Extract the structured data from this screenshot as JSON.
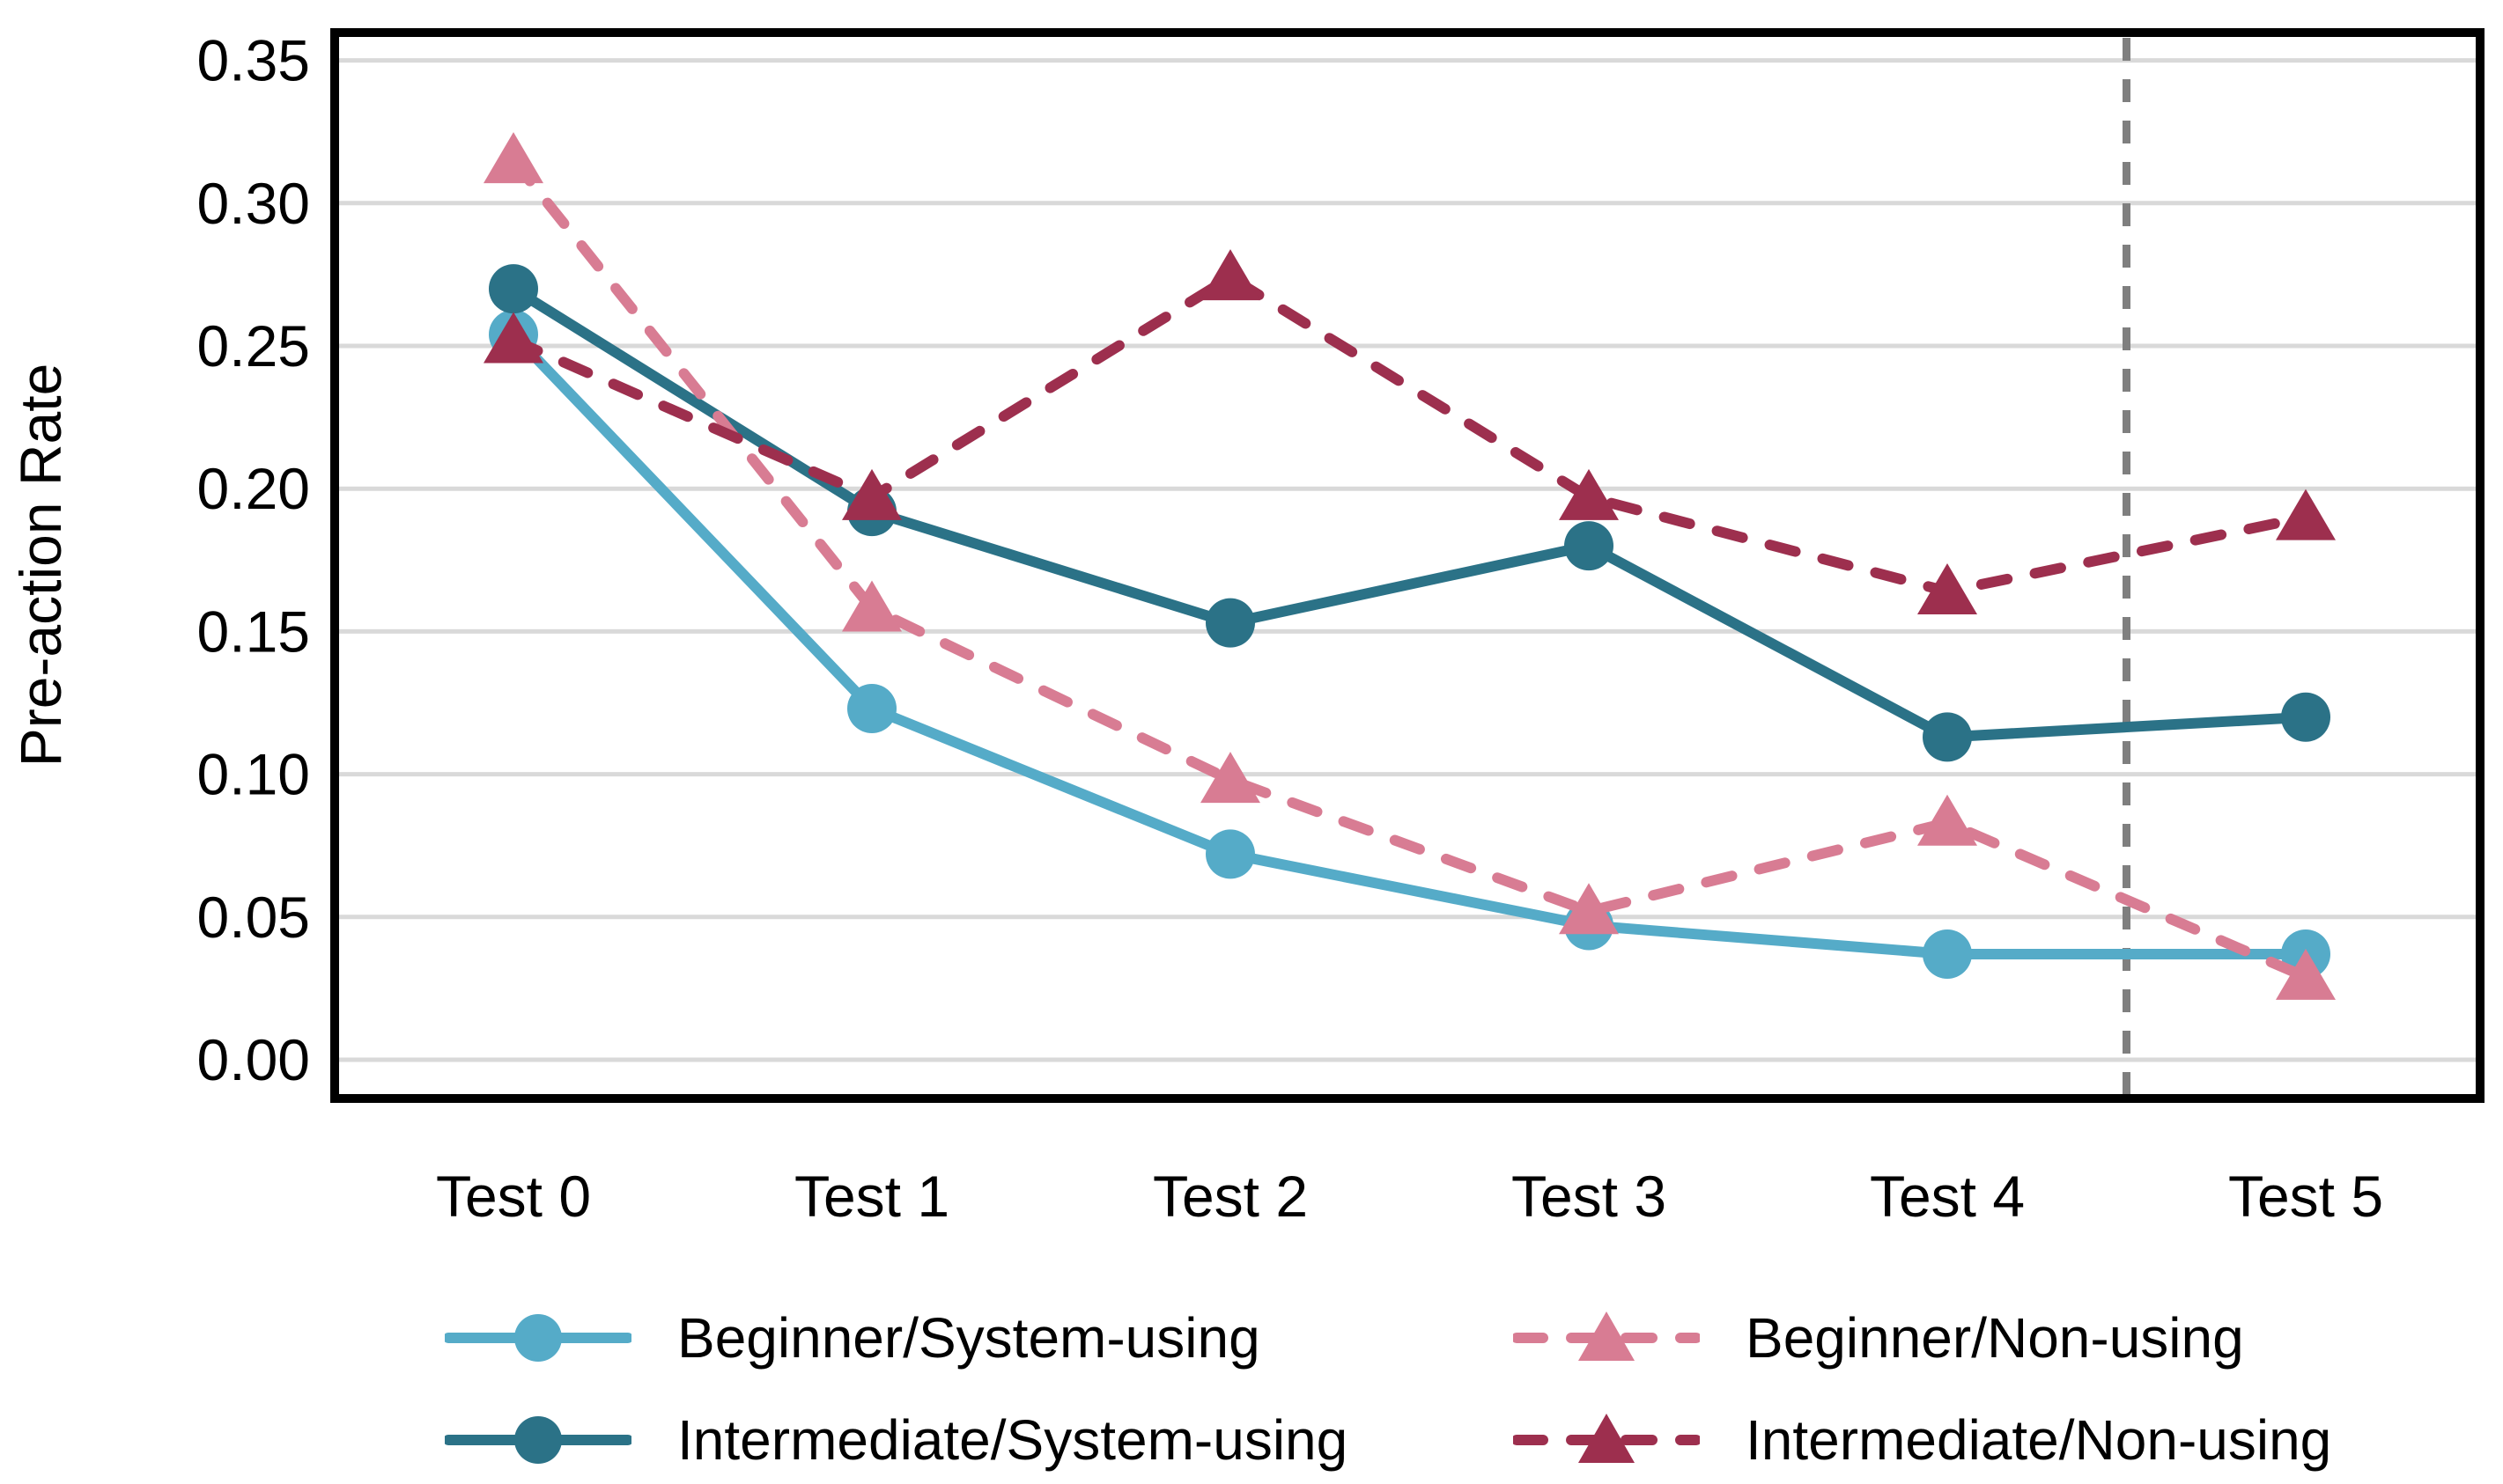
{
  "chart_data": {
    "type": "line",
    "title": "",
    "xlabel": "",
    "ylabel": "Pre-action Rate",
    "categories": [
      "Test 0",
      "Test 1",
      "Test 2",
      "Test 3",
      "Test 4",
      "Test 5"
    ],
    "series": [
      {
        "name": "Beginner/System-using",
        "color": "#55abc8",
        "line_style": "solid",
        "marker": "circle",
        "values": [
          0.254,
          0.123,
          0.072,
          0.047,
          0.037,
          0.037
        ]
      },
      {
        "name": "Intermediate/System-using",
        "color": "#2b7287",
        "line_style": "solid",
        "marker": "circle",
        "values": [
          0.27,
          0.192,
          0.153,
          0.18,
          0.113,
          0.12
        ]
      },
      {
        "name": "Beginner/Non-using",
        "color": "#d87c93",
        "line_style": "dashed",
        "marker": "triangle",
        "values": [
          0.315,
          0.158,
          0.098,
          0.052,
          0.083,
          0.029
        ]
      },
      {
        "name": "Intermediate/Non-using",
        "color": "#9d2f4e",
        "line_style": "dashed",
        "marker": "triangle",
        "values": [
          0.252,
          0.197,
          0.274,
          0.197,
          0.164,
          0.19
        ]
      }
    ],
    "ylim": [
      0.0,
      0.35
    ],
    "y_ticks": [
      {
        "v": 0.0,
        "label": "0.00"
      },
      {
        "v": 0.05,
        "label": "0.05"
      },
      {
        "v": 0.1,
        "label": "0.10"
      },
      {
        "v": 0.15,
        "label": "0.15"
      },
      {
        "v": 0.2,
        "label": "0.20"
      },
      {
        "v": 0.25,
        "label": "0.25"
      },
      {
        "v": 0.3,
        "label": "0.30"
      },
      {
        "v": 0.35,
        "label": "0.35"
      }
    ],
    "grid": "horizontal-only",
    "legend_position": "bottom",
    "vline": {
      "between_categories": [
        "Test 4",
        "Test 5"
      ],
      "color": "#7f7f7f",
      "style": "dashed"
    },
    "colors": {
      "gridline": "#d9d9d9",
      "frame": "#000000",
      "text": "#000000",
      "vline": "#7f7f7f"
    }
  }
}
